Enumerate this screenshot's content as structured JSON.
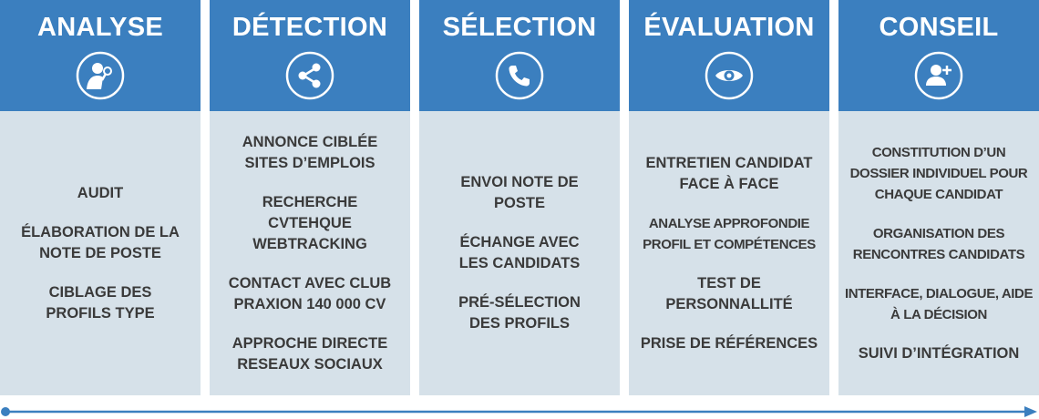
{
  "columns": [
    {
      "title": "ANALYSE",
      "icon": "person-magnifier-icon",
      "items": [
        "AUDIT",
        "ÉLABORATION DE LA NOTE DE POSTE",
        "CIBLAGE DES PROFILS TYPE"
      ]
    },
    {
      "title": "DÉTECTION",
      "icon": "share-icon",
      "items": [
        "ANNONCE CIBLÉE SITES D’EMPLOIS",
        "RECHERCHE CVTEHQUE WEBTRACKING",
        "CONTACT AVEC CLUB PRAXION 140 000 CV",
        "APPROCHE DIRECTE RESEAUX SOCIAUX"
      ]
    },
    {
      "title": "SÉLECTION",
      "icon": "phone-icon",
      "items": [
        "ENVOI NOTE DE POSTE",
        "ÉCHANGE AVEC LES CANDIDATS",
        "PRÉ-SÉLECTION DES PROFILS"
      ]
    },
    {
      "title": "ÉVALUATION",
      "icon": "eye-icon",
      "items": [
        "ENTRETIEN CANDIDAT FACE À FACE",
        "ANALYSE APPROFONDIE PROFIL ET COMPÉTENCES",
        "TEST DE PERSONNALLITÉ",
        "PRISE DE RÉFÉRENCES"
      ]
    },
    {
      "title": "CONSEIL",
      "icon": "add-user-icon",
      "items": [
        "CONSTITUTION D’UN DOSSIER INDIVIDUEL POUR CHAQUE CANDIDAT",
        "ORGANISATION DES RENCONTRES CANDIDATS",
        "INTERFACE, DIALOGUE, AIDE À LA DÉCISION",
        "SUIVI D’INTÉGRATION"
      ]
    }
  ],
  "colors": {
    "header": "#3b7fbf",
    "body": "#d6e1e9",
    "text": "#3a3a3a",
    "timeline": "#3b7fbf"
  }
}
